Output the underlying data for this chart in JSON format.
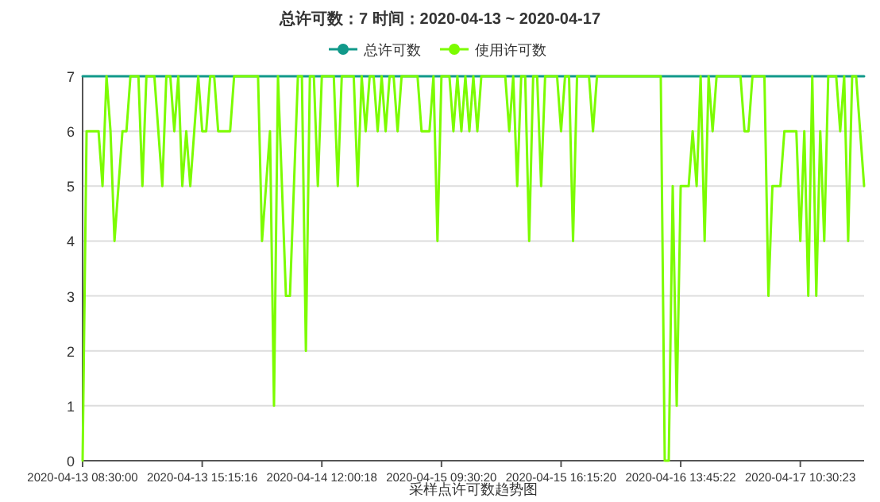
{
  "chart_data": {
    "type": "line",
    "title": "总许可数：7 时间：2020-04-13 ~ 2020-04-17",
    "xlabel": "采样点许可数趋势图",
    "categories": [
      "2020-04-13 08:30:00",
      null,
      null,
      null,
      null,
      null,
      null,
      null,
      null,
      null,
      null,
      null,
      null,
      null,
      null,
      null,
      null,
      null,
      null,
      null,
      null,
      null,
      null,
      null,
      null,
      null,
      null,
      null,
      null,
      null,
      "2020-04-13 15:15:16",
      null,
      null,
      null,
      null,
      null,
      null,
      null,
      null,
      null,
      null,
      null,
      null,
      null,
      null,
      null,
      null,
      null,
      null,
      null,
      null,
      null,
      null,
      null,
      null,
      null,
      null,
      null,
      null,
      null,
      "2020-04-14 12:00:18",
      null,
      null,
      null,
      null,
      null,
      null,
      null,
      null,
      null,
      null,
      null,
      null,
      null,
      null,
      null,
      null,
      null,
      null,
      null,
      null,
      null,
      null,
      null,
      null,
      null,
      null,
      null,
      null,
      null,
      "2020-04-15 09:30:20",
      null,
      null,
      null,
      null,
      null,
      null,
      null,
      null,
      null,
      null,
      null,
      null,
      null,
      null,
      null,
      null,
      null,
      null,
      null,
      null,
      null,
      null,
      null,
      null,
      null,
      null,
      null,
      null,
      null,
      "2020-04-15 16:15:20",
      null,
      null,
      null,
      null,
      null,
      null,
      null,
      null,
      null,
      null,
      null,
      null,
      null,
      null,
      null,
      null,
      null,
      null,
      null,
      null,
      null,
      null,
      null,
      null,
      null,
      null,
      null,
      null,
      null,
      "2020-04-16 13:45:22",
      null,
      null,
      null,
      null,
      null,
      null,
      null,
      null,
      null,
      null,
      null,
      null,
      null,
      null,
      null,
      null,
      null,
      null,
      null,
      null,
      null,
      null,
      null,
      null,
      null,
      null,
      null,
      null,
      null,
      "2020-04-17 10:30:23",
      null,
      null,
      null,
      null,
      null,
      null,
      null,
      null,
      null,
      null,
      null,
      null,
      null,
      null,
      null,
      null
    ],
    "series": [
      {
        "name": "总许可数",
        "color": "#11998a",
        "values": [
          7,
          7,
          7,
          7,
          7,
          7,
          7,
          7,
          7,
          7,
          7,
          7,
          7,
          7,
          7,
          7,
          7,
          7,
          7,
          7,
          7,
          7,
          7,
          7,
          7,
          7,
          7,
          7,
          7,
          7,
          7,
          7,
          7,
          7,
          7,
          7,
          7,
          7,
          7,
          7,
          7,
          7,
          7,
          7,
          7,
          7,
          7,
          7,
          7,
          7,
          7,
          7,
          7,
          7,
          7,
          7,
          7,
          7,
          7,
          7,
          7,
          7,
          7,
          7,
          7,
          7,
          7,
          7,
          7,
          7,
          7,
          7,
          7,
          7,
          7,
          7,
          7,
          7,
          7,
          7,
          7,
          7,
          7,
          7,
          7,
          7,
          7,
          7,
          7,
          7,
          7,
          7,
          7,
          7,
          7,
          7,
          7,
          7,
          7,
          7,
          7,
          7,
          7,
          7,
          7,
          7,
          7,
          7,
          7,
          7,
          7,
          7,
          7,
          7,
          7,
          7,
          7,
          7,
          7,
          7,
          7,
          7,
          7,
          7,
          7,
          7,
          7,
          7,
          7,
          7,
          7,
          7,
          7,
          7,
          7,
          7,
          7,
          7,
          7,
          7,
          7,
          7,
          7,
          7,
          7,
          7,
          7,
          7,
          7,
          7,
          7,
          7,
          7,
          7,
          7,
          7,
          7,
          7,
          7,
          7,
          7,
          7,
          7,
          7,
          7,
          7,
          7,
          7,
          7,
          7,
          7,
          7,
          7,
          7,
          7,
          7,
          7,
          7,
          7,
          7,
          7,
          7,
          7,
          7,
          7,
          7,
          7,
          7,
          7,
          7,
          7,
          7,
          7,
          7,
          7,
          7,
          7
        ]
      },
      {
        "name": "使用许可数",
        "color": "#7cfc00",
        "values": [
          0,
          6,
          6,
          6,
          6,
          5,
          7,
          6,
          4,
          5,
          6,
          6,
          7,
          7,
          7,
          5,
          7,
          7,
          7,
          6,
          5,
          7,
          7,
          6,
          7,
          5,
          6,
          5,
          6,
          7,
          6,
          6,
          7,
          7,
          6,
          6,
          6,
          6,
          7,
          7,
          7,
          7,
          7,
          7,
          7,
          4,
          5,
          6,
          1,
          7,
          5,
          3,
          3,
          5,
          7,
          7,
          2,
          7,
          7,
          5,
          7,
          7,
          7,
          7,
          5,
          7,
          7,
          7,
          7,
          5,
          7,
          6,
          7,
          7,
          6,
          7,
          6,
          7,
          7,
          6,
          7,
          7,
          7,
          7,
          7,
          6,
          6,
          6,
          7,
          4,
          7,
          7,
          7,
          6,
          7,
          6,
          7,
          6,
          7,
          6,
          7,
          7,
          7,
          7,
          7,
          7,
          7,
          6,
          7,
          5,
          7,
          7,
          4,
          7,
          7,
          5,
          7,
          7,
          7,
          7,
          6,
          7,
          7,
          4,
          7,
          7,
          7,
          7,
          6,
          7,
          7,
          7,
          7,
          7,
          7,
          7,
          7,
          7,
          7,
          7,
          7,
          7,
          7,
          7,
          7,
          7,
          0,
          0,
          5,
          1,
          5,
          5,
          5,
          6,
          5,
          7,
          4,
          7,
          6,
          7,
          7,
          7,
          7,
          7,
          7,
          7,
          6,
          6,
          7,
          7,
          7,
          7,
          3,
          5,
          5,
          5,
          6,
          6,
          6,
          6,
          4,
          6,
          3,
          7,
          3,
          6,
          4,
          7,
          7,
          7,
          6,
          7,
          4,
          7,
          7,
          6,
          5
        ]
      }
    ],
    "ylim": [
      0,
      7
    ],
    "yticks": [
      0,
      1,
      2,
      3,
      4,
      5,
      6,
      7
    ],
    "grid": "y",
    "legend": "top"
  }
}
